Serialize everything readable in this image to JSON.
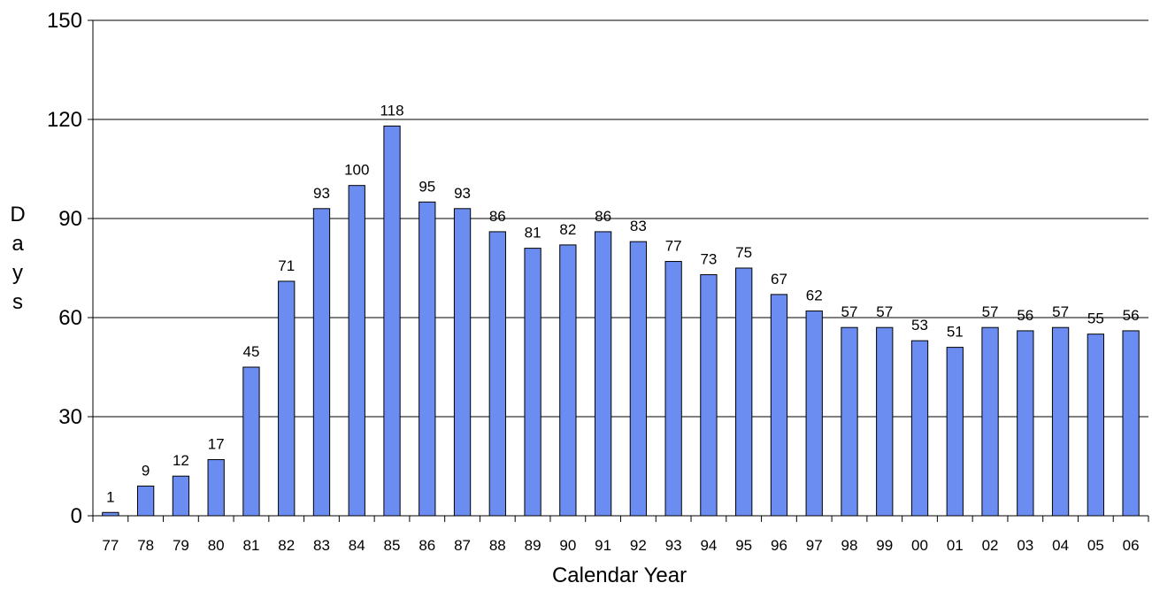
{
  "chart_data": {
    "type": "bar",
    "title": "",
    "xlabel": "Calendar Year",
    "ylabel": "Days",
    "ylim": [
      0,
      150
    ],
    "yticks": [
      0,
      30,
      60,
      90,
      120,
      150
    ],
    "grid": true,
    "legend": "none",
    "bar_color": "#6b8cf0",
    "bar_edge_color": "#000000",
    "categories": [
      "77",
      "78",
      "79",
      "80",
      "81",
      "82",
      "83",
      "84",
      "85",
      "86",
      "87",
      "88",
      "89",
      "90",
      "91",
      "92",
      "93",
      "94",
      "95",
      "96",
      "97",
      "98",
      "99",
      "00",
      "01",
      "02",
      "03",
      "04",
      "05",
      "06"
    ],
    "values": [
      1,
      9,
      12,
      17,
      45,
      71,
      93,
      100,
      118,
      95,
      93,
      86,
      81,
      82,
      86,
      83,
      77,
      73,
      75,
      67,
      62,
      57,
      57,
      53,
      51,
      57,
      56,
      57,
      55,
      56
    ]
  }
}
